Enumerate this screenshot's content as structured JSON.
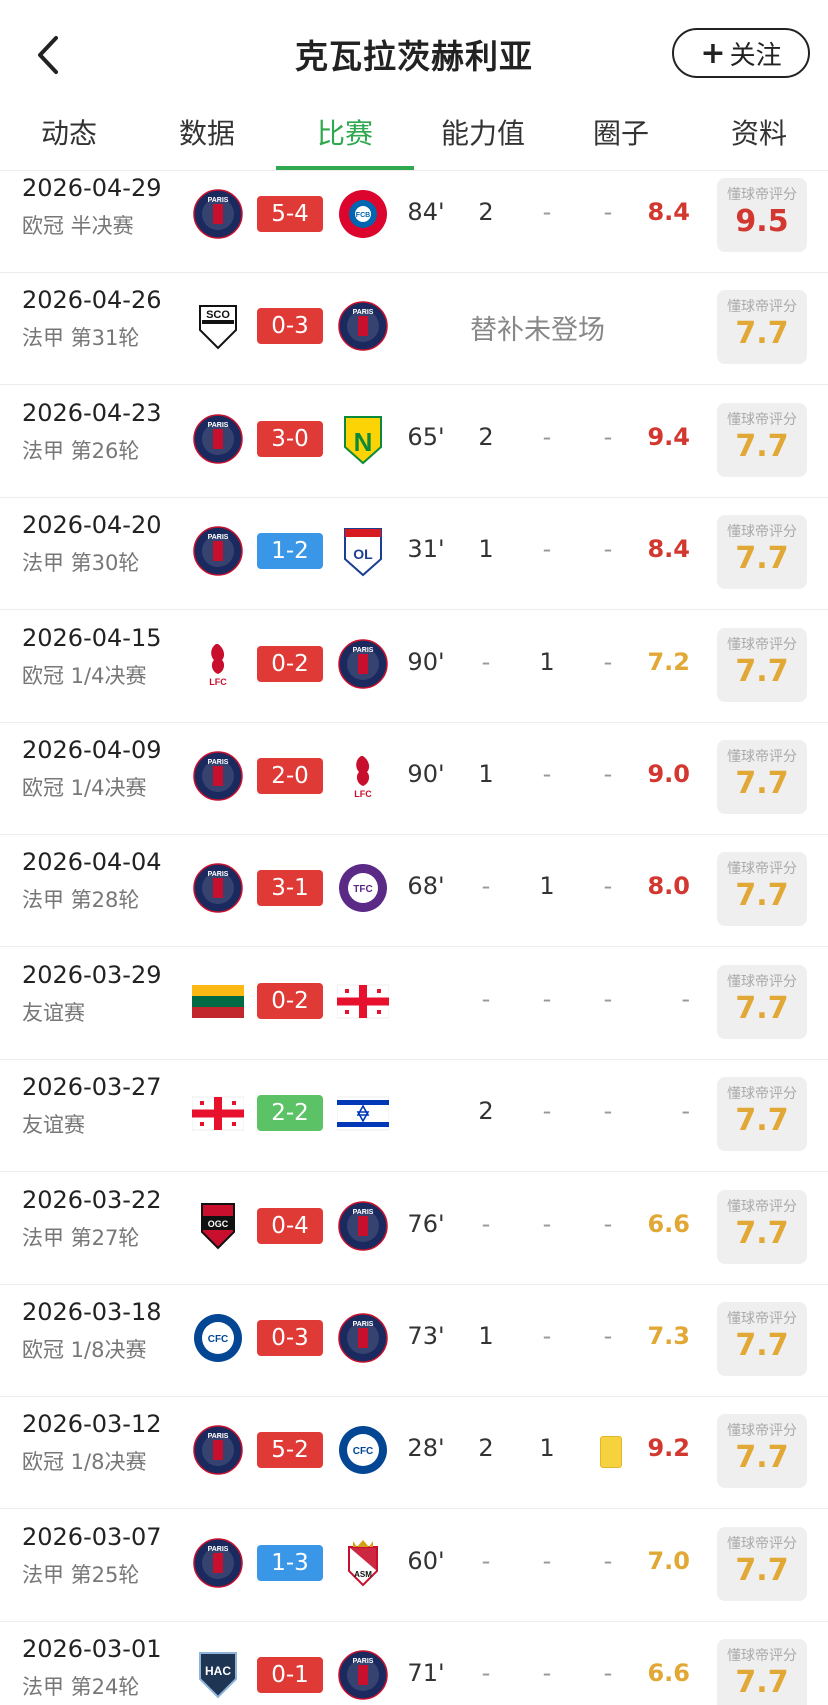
{
  "header": {
    "title": "克瓦拉茨赫利亚",
    "follow_label": "关注",
    "follow_plus": "+"
  },
  "tabs": [
    "动态",
    "数据",
    "比赛",
    "能力值",
    "圈子",
    "资料"
  ],
  "active_tab": 2,
  "badge_label": "懂球帝评分",
  "sub_note": "替补未登场",
  "matches": [
    {
      "date": "2026-04-29",
      "comp": "欧冠 半决赛",
      "home": "psg",
      "away": "bayern",
      "score": "5-4",
      "result": "win",
      "min": "84'",
      "goals": "2",
      "assists": "-",
      "cards": "-",
      "rating": "8.4",
      "rating_color": "red",
      "badge": "9.5",
      "badge_color": "red"
    },
    {
      "date": "2026-04-26",
      "comp": "法甲 第31轮",
      "home": "angers",
      "away": "psg",
      "score": "0-3",
      "result": "win",
      "sub": true,
      "badge": "7.7",
      "badge_color": "yellow"
    },
    {
      "date": "2026-04-23",
      "comp": "法甲 第26轮",
      "home": "psg",
      "away": "nantes",
      "score": "3-0",
      "result": "win",
      "min": "65'",
      "goals": "2",
      "assists": "-",
      "cards": "-",
      "rating": "9.4",
      "rating_color": "red",
      "badge": "7.7",
      "badge_color": "yellow"
    },
    {
      "date": "2026-04-20",
      "comp": "法甲 第30轮",
      "home": "psg",
      "away": "lyon",
      "score": "1-2",
      "result": "loss",
      "min": "31'",
      "goals": "1",
      "assists": "-",
      "cards": "-",
      "rating": "8.4",
      "rating_color": "red",
      "badge": "7.7",
      "badge_color": "yellow"
    },
    {
      "date": "2026-04-15",
      "comp": "欧冠 1/4决赛",
      "home": "liverpool",
      "away": "psg",
      "score": "0-2",
      "result": "win",
      "min": "90'",
      "goals": "-",
      "assists": "1",
      "cards": "-",
      "rating": "7.2",
      "rating_color": "yellow",
      "badge": "7.7",
      "badge_color": "yellow"
    },
    {
      "date": "2026-04-09",
      "comp": "欧冠 1/4决赛",
      "home": "psg",
      "away": "liverpool",
      "score": "2-0",
      "result": "win",
      "min": "90'",
      "goals": "1",
      "assists": "-",
      "cards": "-",
      "rating": "9.0",
      "rating_color": "red",
      "badge": "7.7",
      "badge_color": "yellow"
    },
    {
      "date": "2026-04-04",
      "comp": "法甲 第28轮",
      "home": "psg",
      "away": "toulouse",
      "score": "3-1",
      "result": "win",
      "min": "68'",
      "goals": "-",
      "assists": "1",
      "cards": "-",
      "rating": "8.0",
      "rating_color": "red",
      "badge": "7.7",
      "badge_color": "yellow"
    },
    {
      "date": "2026-03-29",
      "comp": "友谊赛",
      "home": "lithuania",
      "away": "georgia",
      "score": "0-2",
      "result": "win",
      "min": "",
      "goals": "-",
      "assists": "-",
      "cards": "-",
      "rating": "-",
      "rating_color": "dash",
      "badge": "7.7",
      "badge_color": "yellow"
    },
    {
      "date": "2026-03-27",
      "comp": "友谊赛",
      "home": "georgia",
      "away": "israel",
      "score": "2-2",
      "result": "draw",
      "min": "",
      "goals": "2",
      "assists": "-",
      "cards": "-",
      "rating": "-",
      "rating_color": "dash",
      "badge": "7.7",
      "badge_color": "yellow"
    },
    {
      "date": "2026-03-22",
      "comp": "法甲 第27轮",
      "home": "nice",
      "away": "psg",
      "score": "0-4",
      "result": "win",
      "min": "76'",
      "goals": "-",
      "assists": "-",
      "cards": "-",
      "rating": "6.6",
      "rating_color": "yellow",
      "badge": "7.7",
      "badge_color": "yellow"
    },
    {
      "date": "2026-03-18",
      "comp": "欧冠 1/8决赛",
      "home": "chelsea",
      "away": "psg",
      "score": "0-3",
      "result": "win",
      "min": "73'",
      "goals": "1",
      "assists": "-",
      "cards": "-",
      "rating": "7.3",
      "rating_color": "yellow",
      "badge": "7.7",
      "badge_color": "yellow"
    },
    {
      "date": "2026-03-12",
      "comp": "欧冠 1/8决赛",
      "home": "psg",
      "away": "chelsea",
      "score": "5-2",
      "result": "win",
      "min": "28'",
      "goals": "2",
      "assists": "1",
      "cards": "yellow",
      "rating": "9.2",
      "rating_color": "red",
      "badge": "7.7",
      "badge_color": "yellow"
    },
    {
      "date": "2026-03-07",
      "comp": "法甲 第25轮",
      "home": "psg",
      "away": "monaco",
      "score": "1-3",
      "result": "loss",
      "min": "60'",
      "goals": "-",
      "assists": "-",
      "cards": "-",
      "rating": "7.0",
      "rating_color": "yellow",
      "badge": "7.7",
      "badge_color": "yellow"
    },
    {
      "date": "2026-03-01",
      "comp": "法甲 第24轮",
      "home": "havre",
      "away": "psg",
      "score": "0-1",
      "result": "win",
      "min": "71'",
      "goals": "-",
      "assists": "-",
      "cards": "-",
      "rating": "6.6",
      "rating_color": "yellow",
      "badge": "7.7",
      "badge_color": "yellow"
    }
  ],
  "logo_text": {
    "psg": "PARIS",
    "bayern": "FCB",
    "angers": "SCO",
    "nantes": "N",
    "lyon": "OL",
    "liverpool": "LFC",
    "toulouse": "TFC",
    "nice": "OGC",
    "chelsea": "CFC",
    "monaco": "ASM",
    "havre": "HAC"
  },
  "colors": {
    "accent": "#2fa84f",
    "win": "#e03a36",
    "loss": "#3a97e8",
    "draw": "#5cc266",
    "rating_red": "#d2382f",
    "rating_yellow": "#e2a835"
  }
}
